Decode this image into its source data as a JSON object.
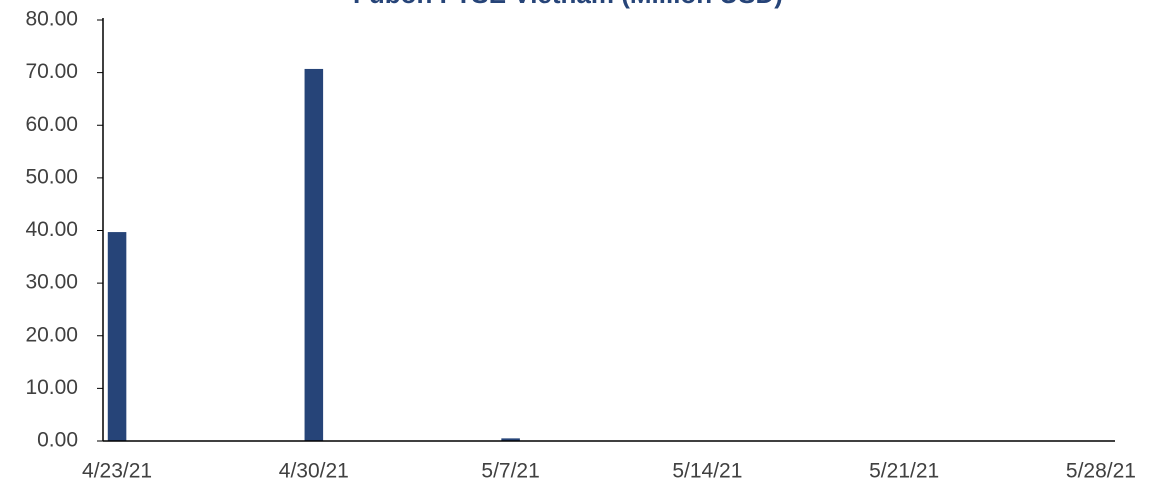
{
  "chart_data": {
    "type": "bar",
    "title": "Fubon FTSE Vietnam (Million USD)",
    "x": [
      "4/23/21",
      "4/30/21",
      "5/7/21"
    ],
    "values": [
      39.7,
      70.7,
      0.5
    ],
    "color": "#264478",
    "xlim": [
      "4/23/21",
      "5/28/21"
    ],
    "xticks": [
      "4/23/21",
      "4/30/21",
      "5/7/21",
      "5/14/21",
      "5/21/21",
      "5/28/21"
    ],
    "ylim": [
      0,
      80
    ],
    "yticks": [
      {
        "value": 0,
        "label": "0.00"
      },
      {
        "value": 10,
        "label": "10.00"
      },
      {
        "value": 20,
        "label": "20.00"
      },
      {
        "value": 30,
        "label": "30.00"
      },
      {
        "value": 40,
        "label": "40.00"
      },
      {
        "value": 50,
        "label": "50.00"
      },
      {
        "value": 60,
        "label": "60.00"
      },
      {
        "value": 70,
        "label": "70.00"
      },
      {
        "value": 80,
        "label": "80.00"
      }
    ],
    "grid": false
  }
}
